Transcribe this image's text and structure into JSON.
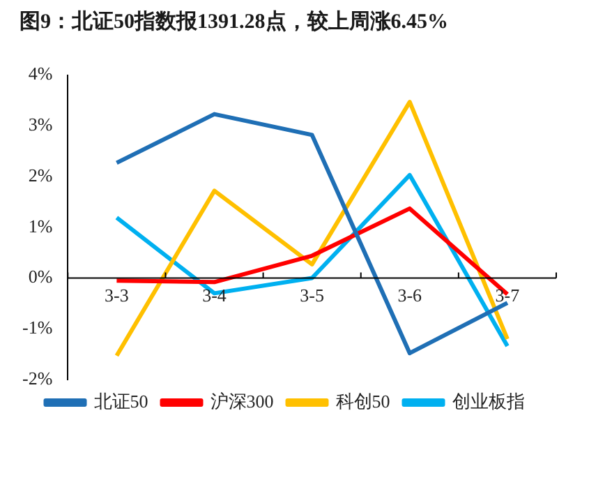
{
  "chart_data": {
    "type": "line",
    "title": "图9：北证50指数报1391.28点，较上周涨6.45%",
    "categories": [
      "3-3",
      "3-4",
      "3-5",
      "3-6",
      "3-7"
    ],
    "series": [
      {
        "name": "北证50",
        "color": "#1f6fb5",
        "values": [
          2.27,
          3.23,
          2.82,
          -1.48,
          -0.49
        ]
      },
      {
        "name": "沪深300",
        "color": "#ff0000",
        "values": [
          -0.05,
          -0.08,
          0.44,
          1.37,
          -0.32
        ]
      },
      {
        "name": "科创50",
        "color": "#ffc000",
        "values": [
          -1.53,
          1.72,
          0.27,
          3.47,
          -1.2
        ]
      },
      {
        "name": "创业板指",
        "color": "#00b0f0",
        "values": [
          1.19,
          -0.3,
          0.0,
          2.03,
          -1.34
        ]
      }
    ],
    "ylim": [
      -2,
      4
    ],
    "yticks": [
      {
        "value": -2,
        "label": "-2%"
      },
      {
        "value": -1,
        "label": "-1%"
      },
      {
        "value": 0,
        "label": "0%"
      },
      {
        "value": 1,
        "label": "1%"
      },
      {
        "value": 2,
        "label": "2%"
      },
      {
        "value": 3,
        "label": "3%"
      },
      {
        "value": 4,
        "label": "4%"
      }
    ],
    "grid": false,
    "legend": "bottom",
    "marker": "none",
    "line_style": "solid"
  }
}
